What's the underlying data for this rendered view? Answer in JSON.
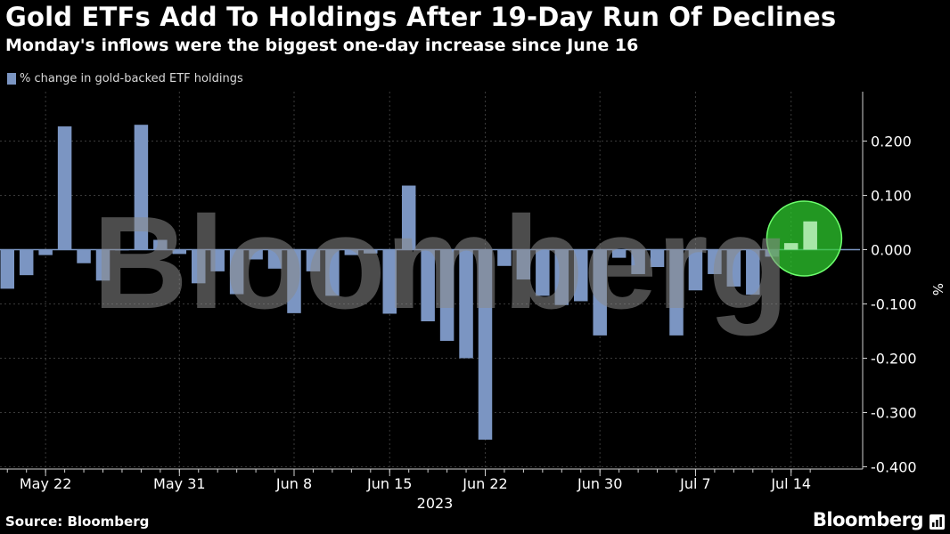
{
  "header": {
    "title": "Gold ETFs Add To Holdings After 19-Day Run Of Declines",
    "subtitle": "Monday's inflows were the biggest one-day increase since June 16"
  },
  "legend": {
    "label": "% change in gold-backed ETF holdings"
  },
  "footer": {
    "source": "Source: Bloomberg",
    "brand": "Bloomberg"
  },
  "watermark": "Bloomberg",
  "colors": {
    "bar": "#7b95c2",
    "background": "#000000",
    "highlight": "#2fd12f"
  },
  "icons": {
    "brand": "bar-chart-icon"
  },
  "chart_data": {
    "type": "bar",
    "title": "Gold ETFs Add To Holdings After 19-Day Run Of Declines",
    "subtitle": "Monday's inflows were the biggest one-day increase since June 16",
    "xlabel": "2023",
    "ylabel": "%",
    "ylim": [
      -0.4,
      0.27
    ],
    "y_ticks": [
      0.2,
      0.1,
      0.0,
      -0.1,
      -0.2,
      -0.3,
      -0.4
    ],
    "y_tick_labels": [
      "0.200",
      "0.100",
      "0.000",
      "-0.100",
      "-0.200",
      "-0.300",
      "-0.400"
    ],
    "x_tick_labels": [
      {
        "label": "May 22",
        "index": 2
      },
      {
        "label": "May 31",
        "index": 9
      },
      {
        "label": "Jun 8",
        "index": 15
      },
      {
        "label": "Jun 15",
        "index": 20
      },
      {
        "label": "Jun 22",
        "index": 25
      },
      {
        "label": "Jun 30",
        "index": 31
      },
      {
        "label": "Jul 7",
        "index": 36
      },
      {
        "label": "Jul 14",
        "index": 41
      }
    ],
    "year_label": "2023",
    "series": [
      {
        "name": "% change in gold-backed ETF holdings",
        "values": [
          -0.072,
          -0.047,
          -0.01,
          0.227,
          -0.025,
          -0.057,
          0.0,
          0.23,
          0.018,
          -0.008,
          -0.062,
          -0.04,
          -0.082,
          -0.018,
          -0.035,
          -0.117,
          -0.04,
          -0.085,
          -0.01,
          -0.007,
          -0.118,
          0.118,
          -0.132,
          -0.168,
          -0.2,
          -0.35,
          -0.03,
          -0.055,
          -0.085,
          -0.102,
          -0.095,
          -0.158,
          -0.015,
          -0.045,
          -0.032,
          -0.158,
          -0.075,
          -0.045,
          -0.068,
          -0.083,
          -0.013,
          0.012,
          0.052
        ]
      }
    ],
    "annotations": [
      {
        "type": "circle-highlight",
        "target_indices": [
          41,
          42
        ],
        "color": "#2fd12f"
      }
    ]
  }
}
